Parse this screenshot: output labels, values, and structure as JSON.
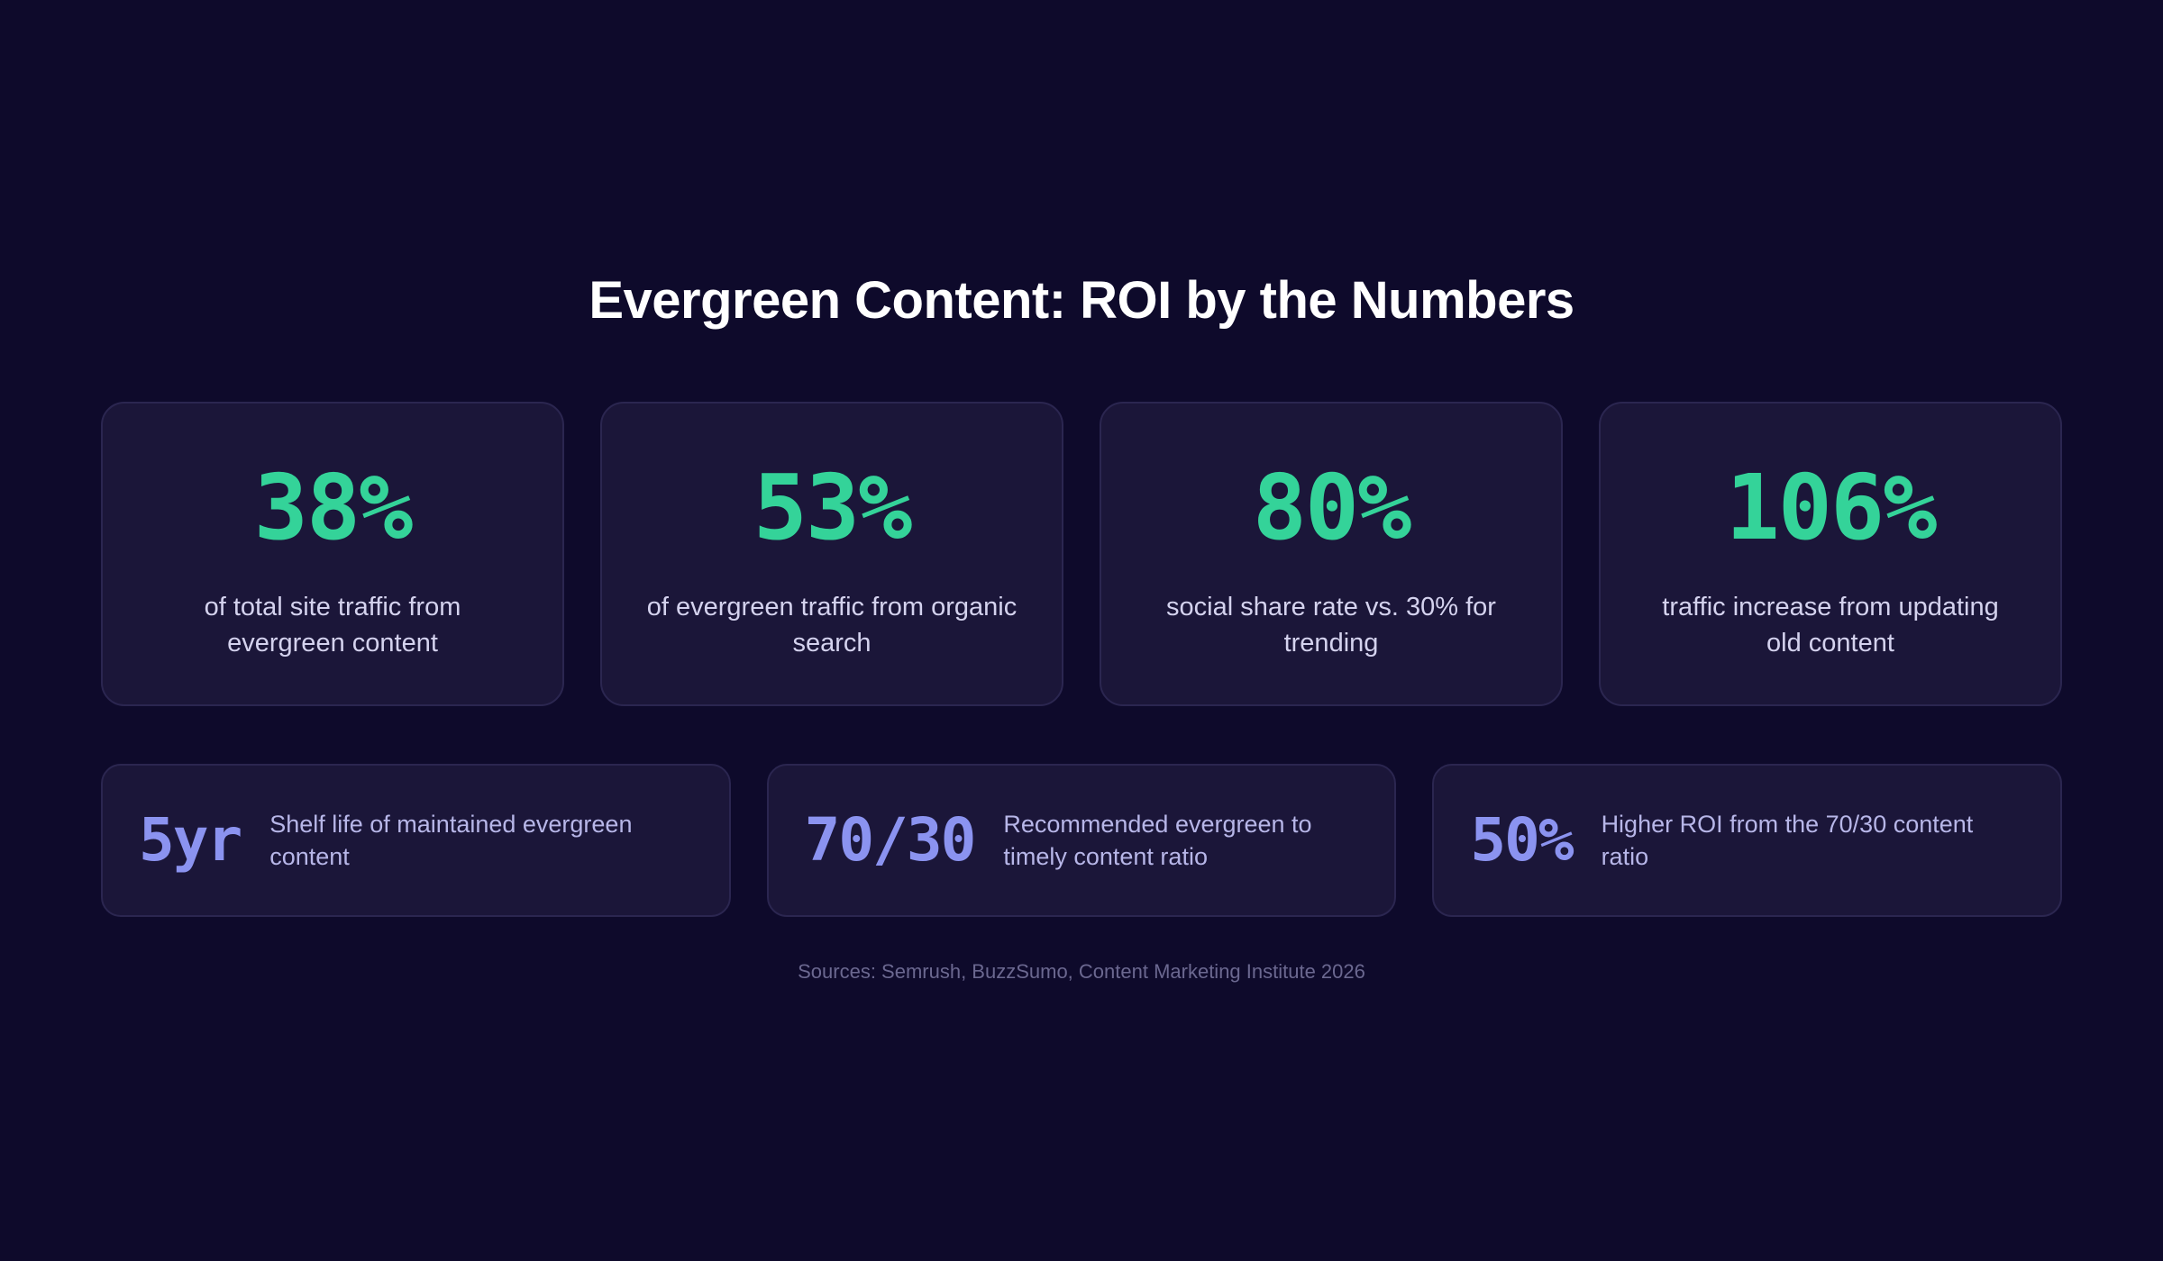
{
  "title": "Evergreen Content: ROI by the Numbers",
  "top_stats": [
    {
      "value": "38%",
      "label": "of total site traffic from evergreen content"
    },
    {
      "value": "53%",
      "label": "of evergreen traffic from organic search"
    },
    {
      "value": "80%",
      "label": "social share rate vs. 30% for trending"
    },
    {
      "value": "106%",
      "label": "traffic increase from updating old content"
    }
  ],
  "bottom_stats": [
    {
      "value": "5yr",
      "label": "Shelf life of maintained evergreen content"
    },
    {
      "value": "70/30",
      "label": "Recommended evergreen to timely content ratio"
    },
    {
      "value": "50%",
      "label": "Higher ROI from the 70/30 content ratio"
    }
  ],
  "sources": "Sources: Semrush, BuzzSumo, Content Marketing Institute 2026",
  "colors": {
    "background": "#0e0a2b",
    "card": "#1b1639",
    "accent_green": "#34d399",
    "accent_indigo": "#8b93f0"
  }
}
